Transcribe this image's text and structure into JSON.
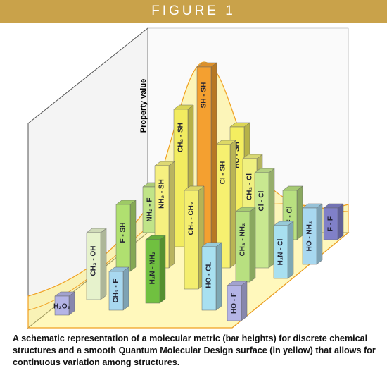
{
  "header": {
    "title": "FIGURE 1"
  },
  "axis_label": "Property value",
  "bars": [
    {
      "label": "H₂O₂"
    },
    {
      "label": "CH₃ - OH"
    },
    {
      "label": "CH₃ - F"
    },
    {
      "label": "F - SH"
    },
    {
      "label": "H₂N - NH₂"
    },
    {
      "label": "NH₂ - F"
    },
    {
      "label": "CH₃ - SH"
    },
    {
      "label": "NH₂ - SH"
    },
    {
      "label": "CH₃ - CH₃"
    },
    {
      "label": "SH - SH"
    },
    {
      "label": "HO - CL"
    },
    {
      "label": "Cl - SH"
    },
    {
      "label": "CH₃ - NH₂"
    },
    {
      "label": "HO - F"
    },
    {
      "label": "HO - SH"
    },
    {
      "label": "CH₃ - Cl"
    },
    {
      "label": "Cl - Cl"
    },
    {
      "label": "H₂N - Cl"
    },
    {
      "label": "F - Cl"
    },
    {
      "label": "HO - NH₂"
    },
    {
      "label": "F - F"
    }
  ],
  "caption": "A schematic representation of a molecular metric (bar heights) for discrete chemical structures and a smooth Quantum Molecular Design surface (in yellow) that allows for continuous variation among structures."
}
